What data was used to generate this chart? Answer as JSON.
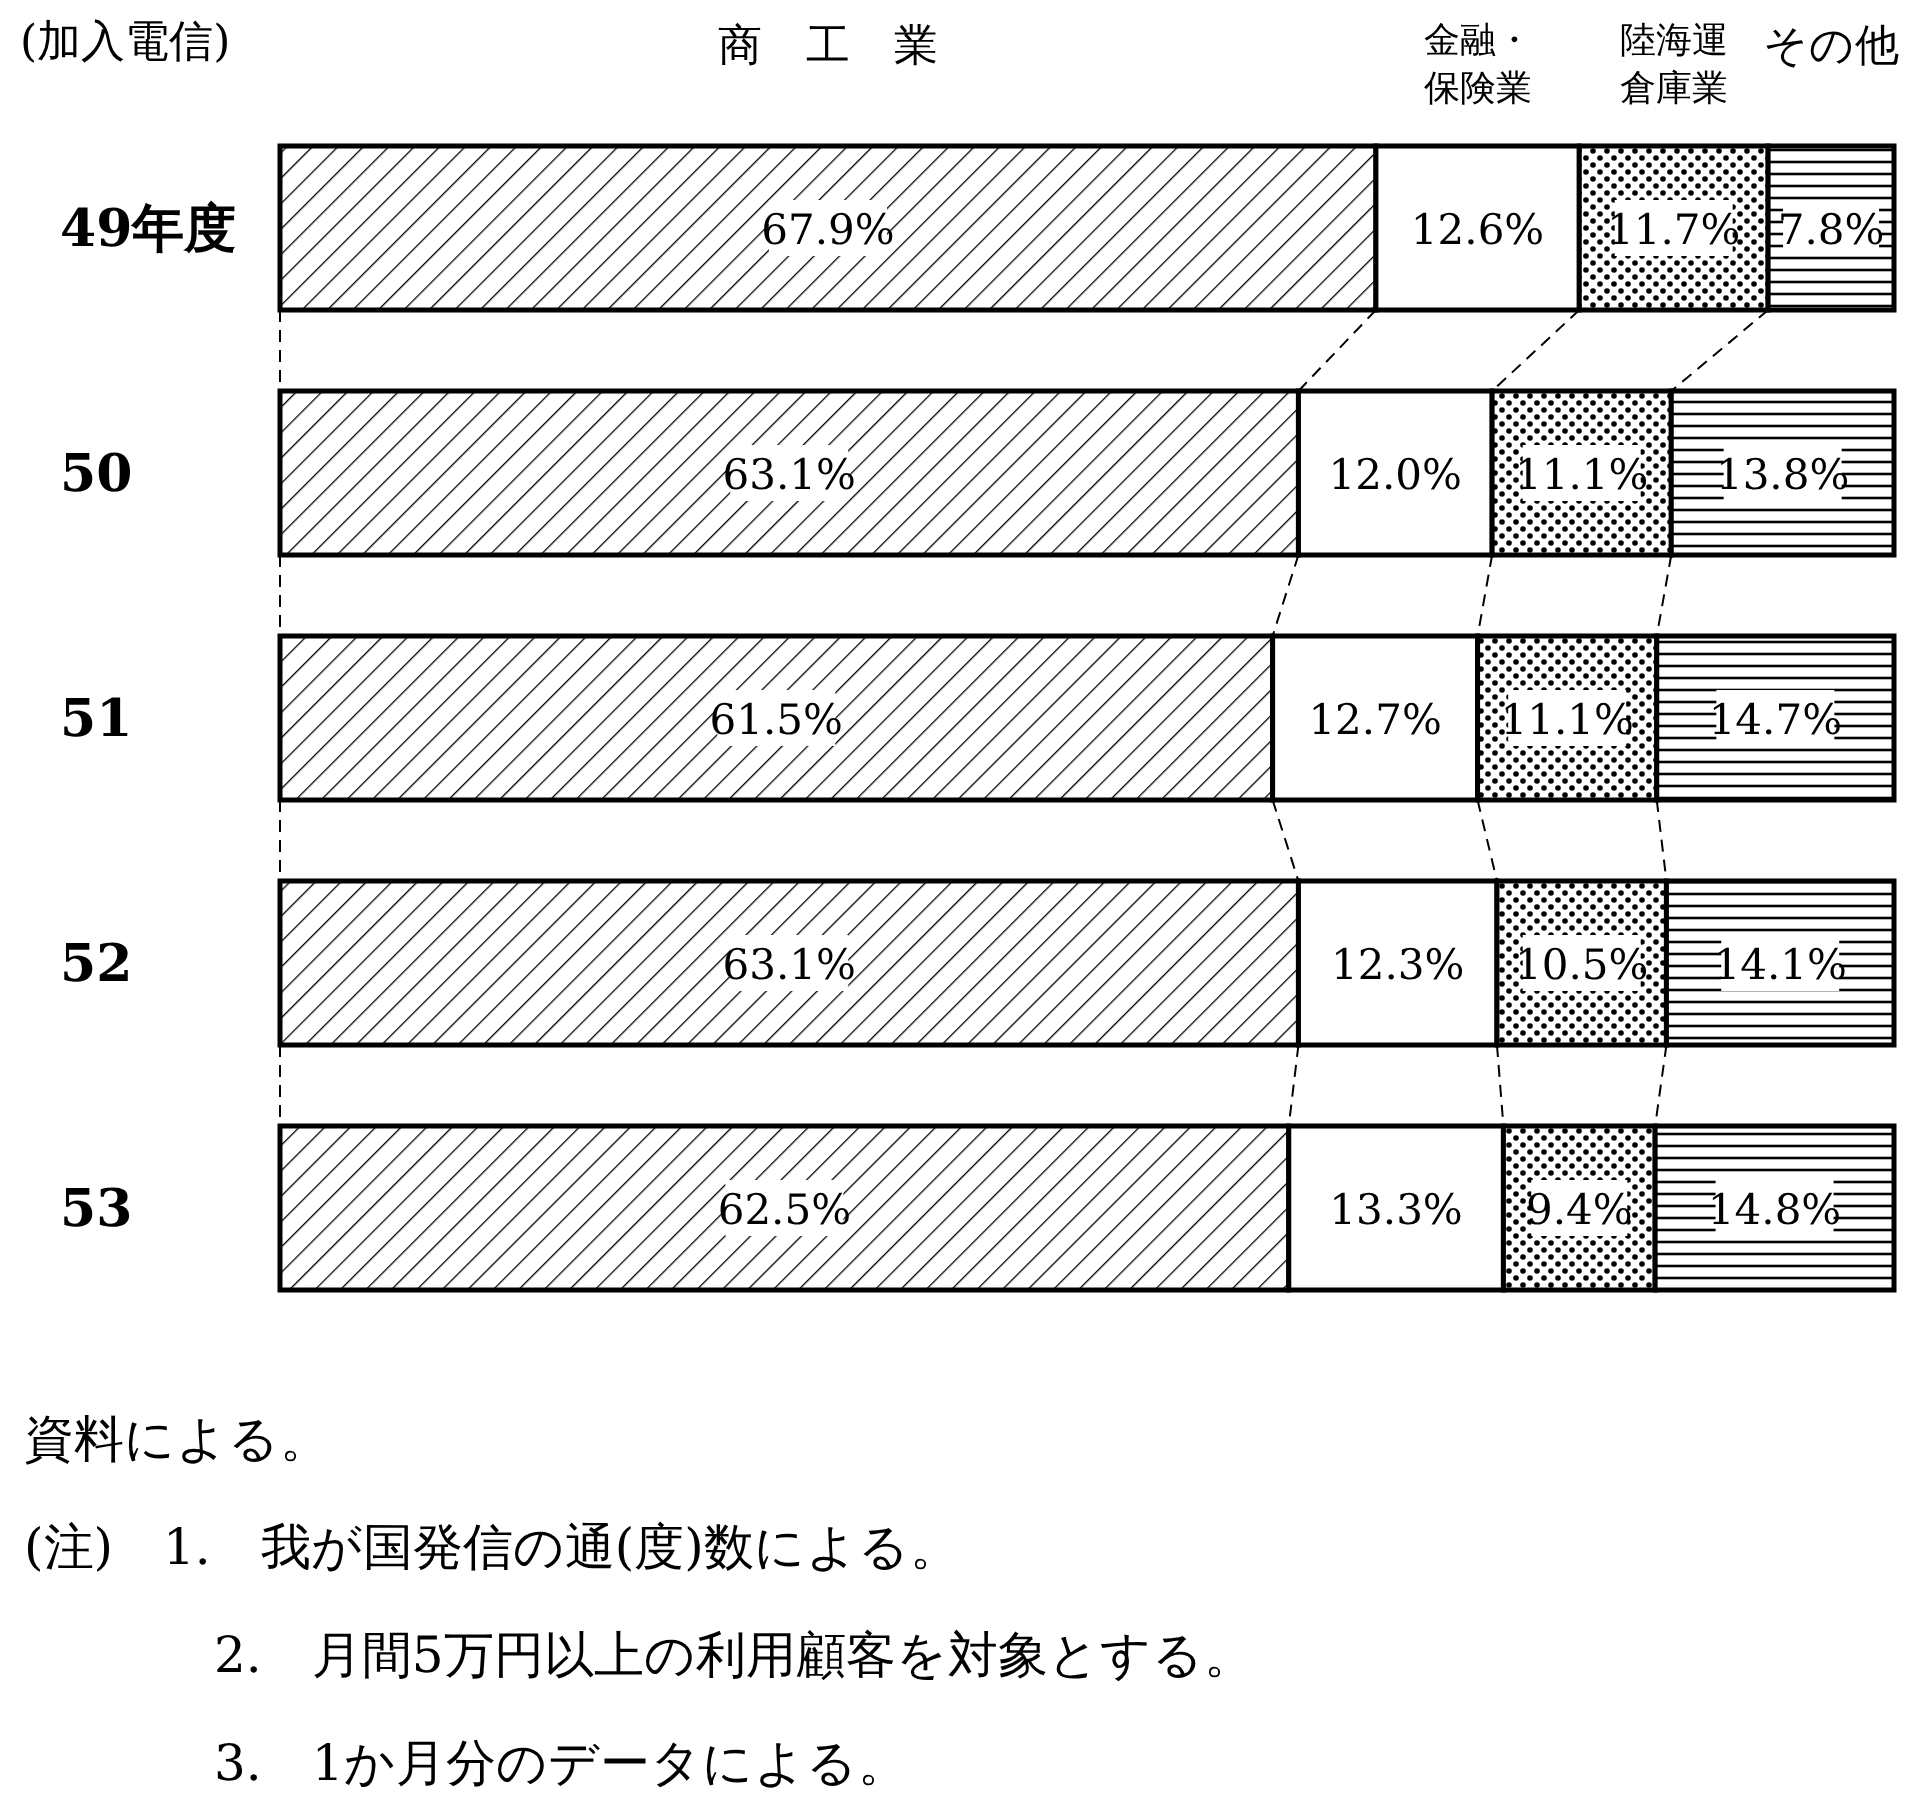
{
  "chart_data": {
    "type": "bar",
    "orientation": "horizontal",
    "stacked": true,
    "legend": "top",
    "data_labels": true,
    "ylabel": "(加入電信)",
    "categories": [
      "49年度",
      "50",
      "51",
      "52",
      "53"
    ],
    "series": [
      {
        "name": "商　工　業",
        "color": "#000000",
        "values": [
          67.9,
          63.1,
          61.5,
          63.1,
          62.5
        ],
        "value_labels": [
          "67.9%",
          "63.1%",
          "61.5%",
          "63.1%",
          "62.5%"
        ]
      },
      {
        "name": "金融・保険業",
        "color": "#ffffff",
        "values": [
          12.6,
          12.0,
          12.7,
          12.3,
          13.3
        ],
        "value_labels": [
          "12.6%",
          "12.0%",
          "12.7%",
          "12.3%",
          "13.3%"
        ]
      },
      {
        "name": "陸海運倉庫業",
        "color": "#000000",
        "values": [
          11.7,
          11.1,
          11.1,
          10.5,
          9.4
        ],
        "value_labels": [
          "11.7%",
          "11.1%",
          "11.1%",
          "10.5%",
          "9.4%"
        ]
      },
      {
        "name": "その他",
        "color": "#000000",
        "values": [
          7.8,
          13.8,
          14.7,
          14.1,
          14.8
        ],
        "value_labels": [
          "7.8%",
          "13.8%",
          "14.7%",
          "14.1%",
          "14.8%"
        ]
      }
    ],
    "annotations": [
      "資料による。",
      "(注)　1.　我が国発信の通(度)数による。",
      "2.　月間5万円以上の利用顧客を対象とする。",
      "3.　1か月分のデータによる。"
    ]
  }
}
